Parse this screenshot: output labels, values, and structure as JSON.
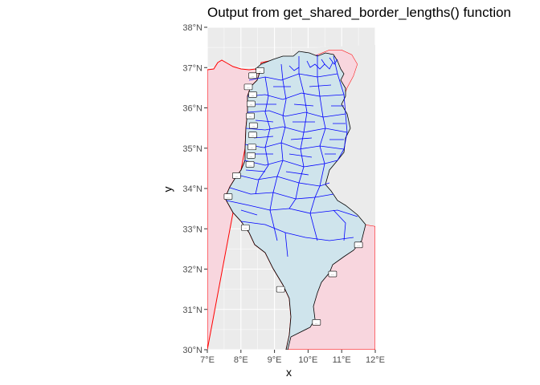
{
  "title": "Output from get_shared_border_lengths() function",
  "x_axis_label": "x",
  "y_axis_label": "y",
  "x_ticks": [
    "7°E",
    "8°E",
    "9°E",
    "10°E",
    "11°E",
    "12°E"
  ],
  "y_ticks": [
    "38°N",
    "37°N",
    "36°N",
    "35°N",
    "34°N",
    "33°N",
    "32°N",
    "31°N",
    "30°N"
  ],
  "colors": {
    "panel_background": "#ebebeb",
    "grid": "#ffffff",
    "neighbor_fill": "#f8d6de",
    "neighbor_border": "#ff0000",
    "tunisia_fill": "#cfe4ec",
    "delegation_lines": "#0000ff",
    "label_box": "#ffffff"
  },
  "map": {
    "lon_range": [
      7,
      12
    ],
    "lat_range": [
      30,
      38
    ],
    "border_segment_labels": [
      {
        "lon": 8.57,
        "lat": 36.93,
        "text": "..."
      },
      {
        "lon": 8.35,
        "lat": 36.8,
        "text": "..."
      },
      {
        "lon": 8.22,
        "lat": 36.52,
        "text": "..."
      },
      {
        "lon": 8.35,
        "lat": 36.33,
        "text": "..."
      },
      {
        "lon": 8.3,
        "lat": 36.1,
        "text": "..."
      },
      {
        "lon": 8.28,
        "lat": 35.8,
        "text": "..."
      },
      {
        "lon": 8.37,
        "lat": 35.56,
        "text": "..."
      },
      {
        "lon": 8.35,
        "lat": 35.33,
        "text": "..."
      },
      {
        "lon": 8.33,
        "lat": 35.03,
        "text": "..."
      },
      {
        "lon": 8.3,
        "lat": 34.82,
        "text": "..."
      },
      {
        "lon": 8.27,
        "lat": 34.6,
        "text": "..."
      },
      {
        "lon": 7.87,
        "lat": 34.32,
        "text": "..."
      },
      {
        "lon": 7.62,
        "lat": 33.8,
        "text": "..."
      },
      {
        "lon": 8.13,
        "lat": 33.03,
        "text": "..."
      },
      {
        "lon": 11.5,
        "lat": 32.6,
        "text": "..."
      },
      {
        "lon": 10.73,
        "lat": 31.88,
        "text": "..."
      },
      {
        "lon": 9.18,
        "lat": 31.5,
        "text": "..."
      },
      {
        "lon": 10.25,
        "lat": 30.68,
        "text": "..."
      }
    ]
  }
}
